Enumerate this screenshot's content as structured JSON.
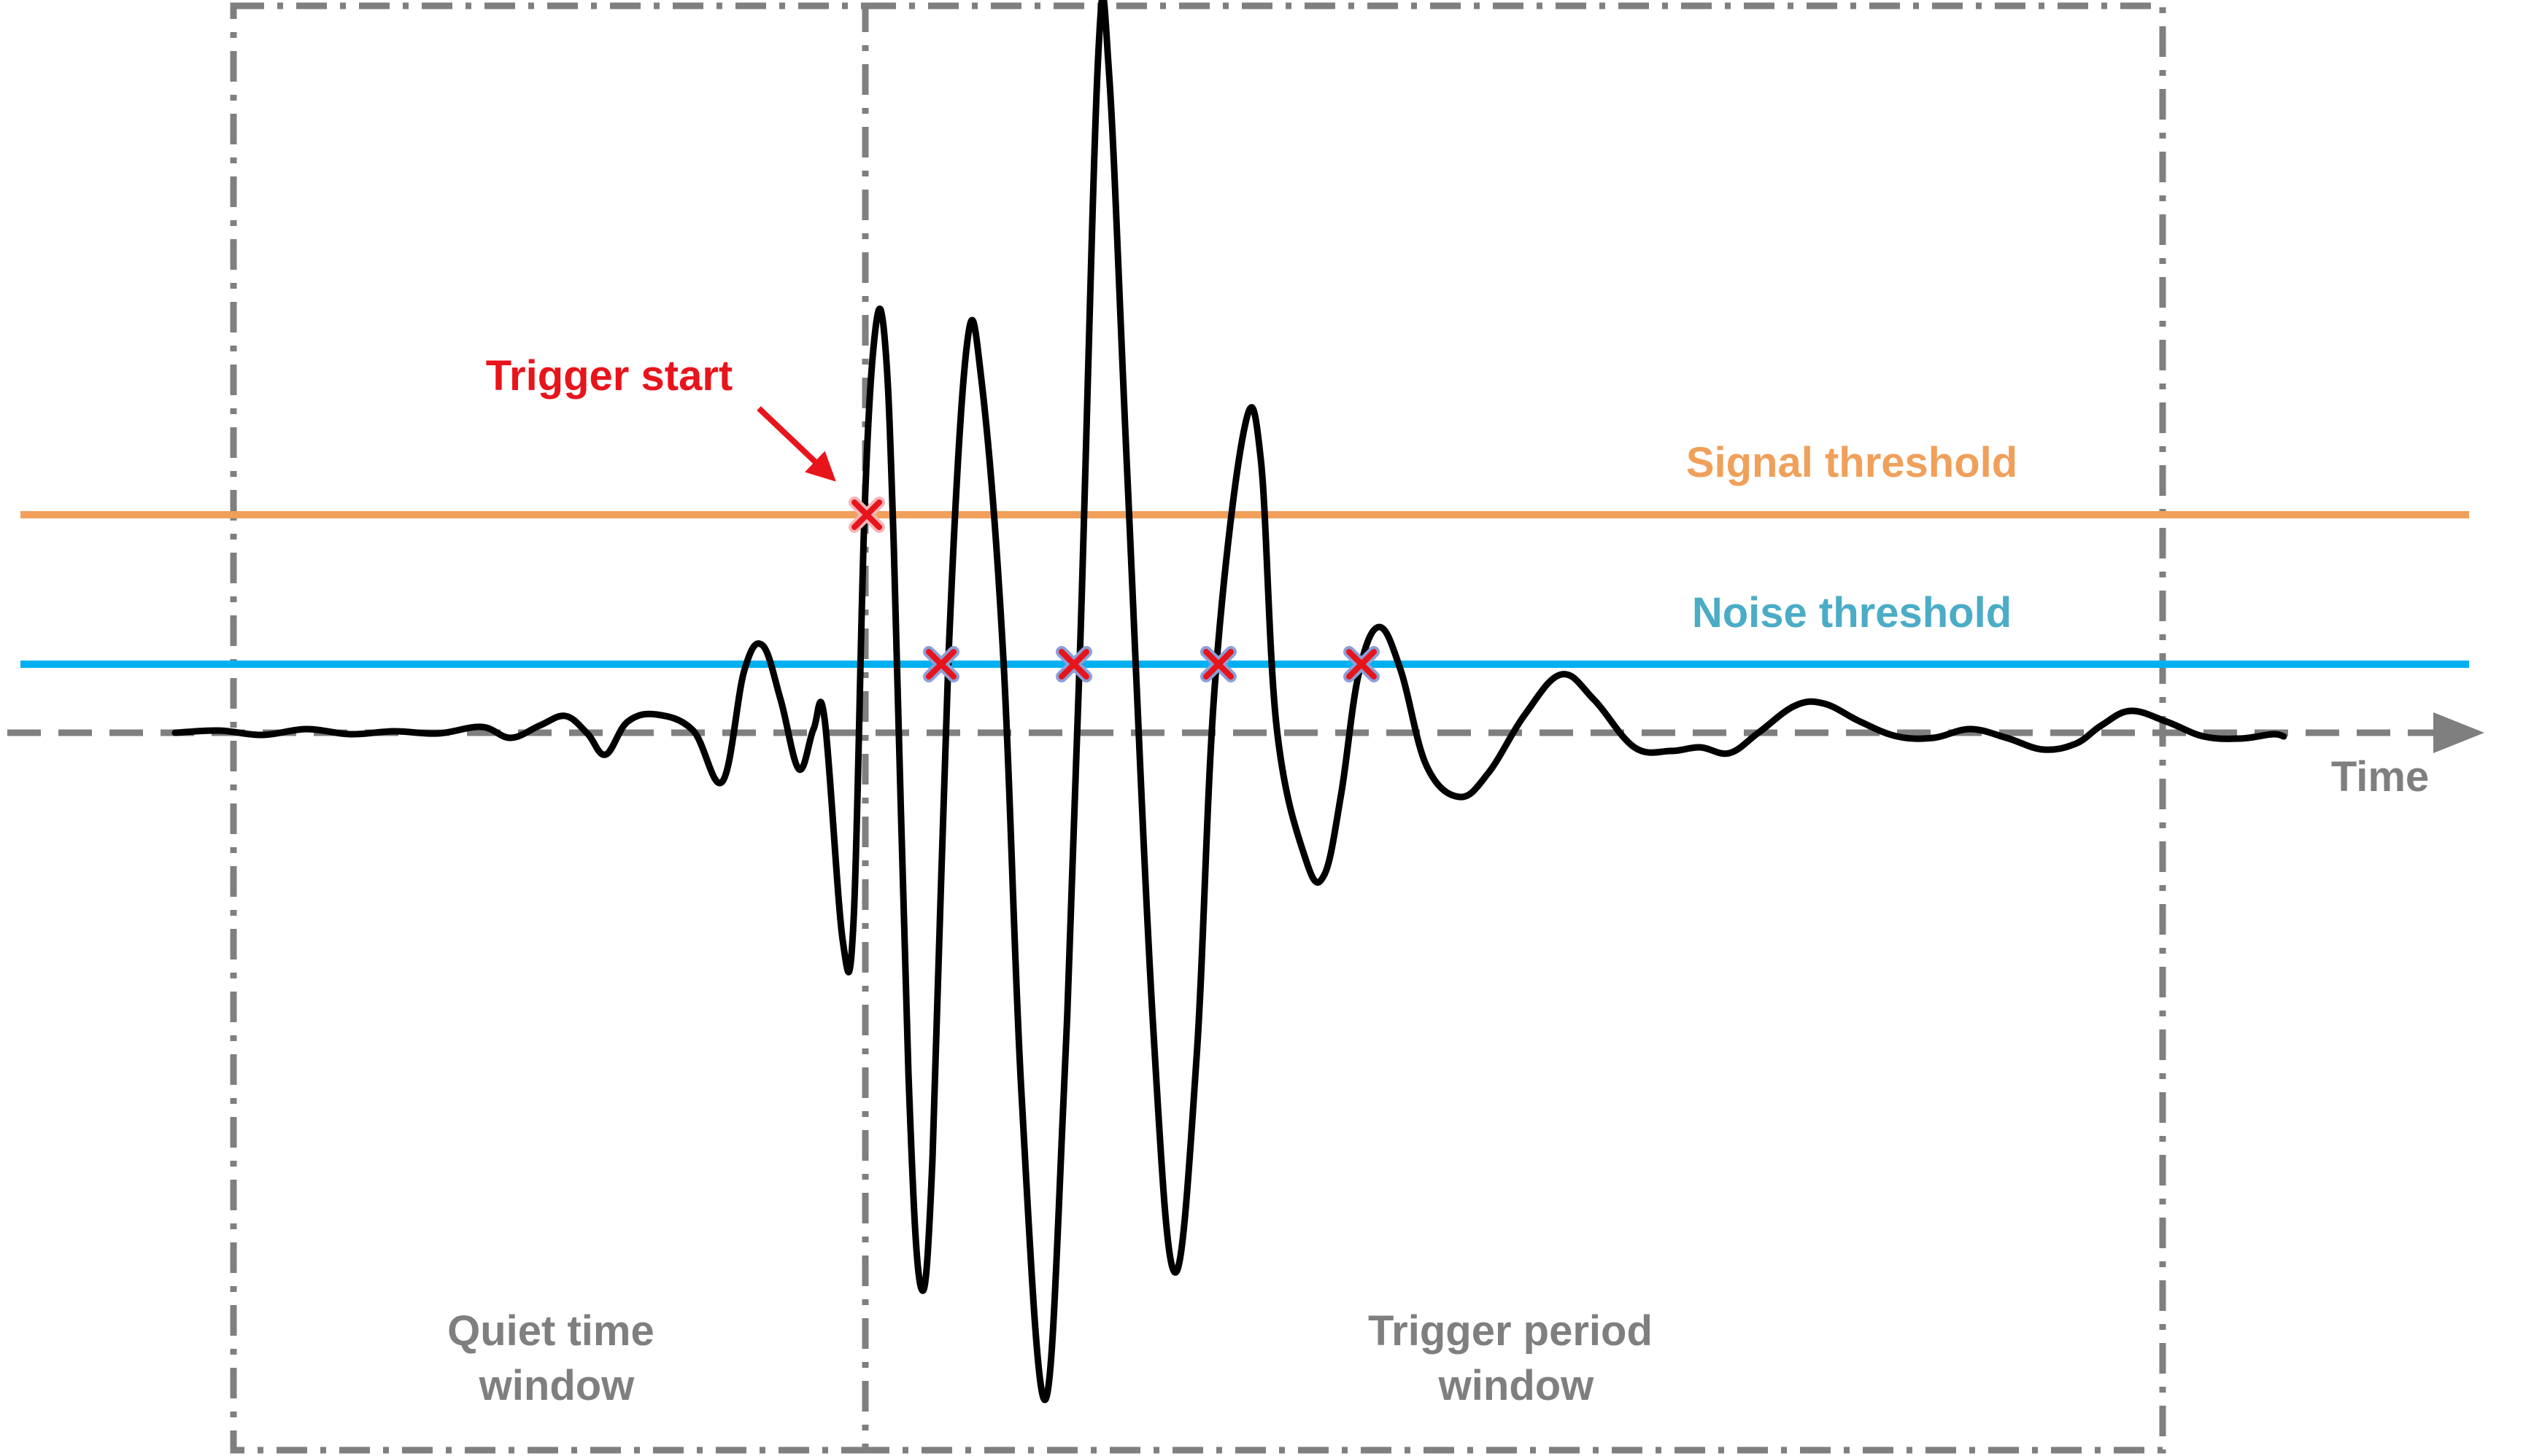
{
  "labels": {
    "trigger_start": "Trigger start",
    "signal_threshold": "Signal threshold",
    "noise_threshold": "Noise threshold",
    "time_axis": "Time",
    "quiet_window": [
      "Quiet time",
      "window"
    ],
    "trigger_window": [
      "Trigger period",
      "window"
    ]
  },
  "colors": {
    "trigger": "#e8141c",
    "signal_threshold": "#f0a05a",
    "noise_threshold": "#00b0f0",
    "noise_label": "#4bacc6",
    "axis": "#7f7f7f",
    "waveform": "#000000",
    "window_border": "#7f7f7f"
  },
  "markers": {
    "signal_crossings": 1,
    "noise_crossings": 4
  }
}
